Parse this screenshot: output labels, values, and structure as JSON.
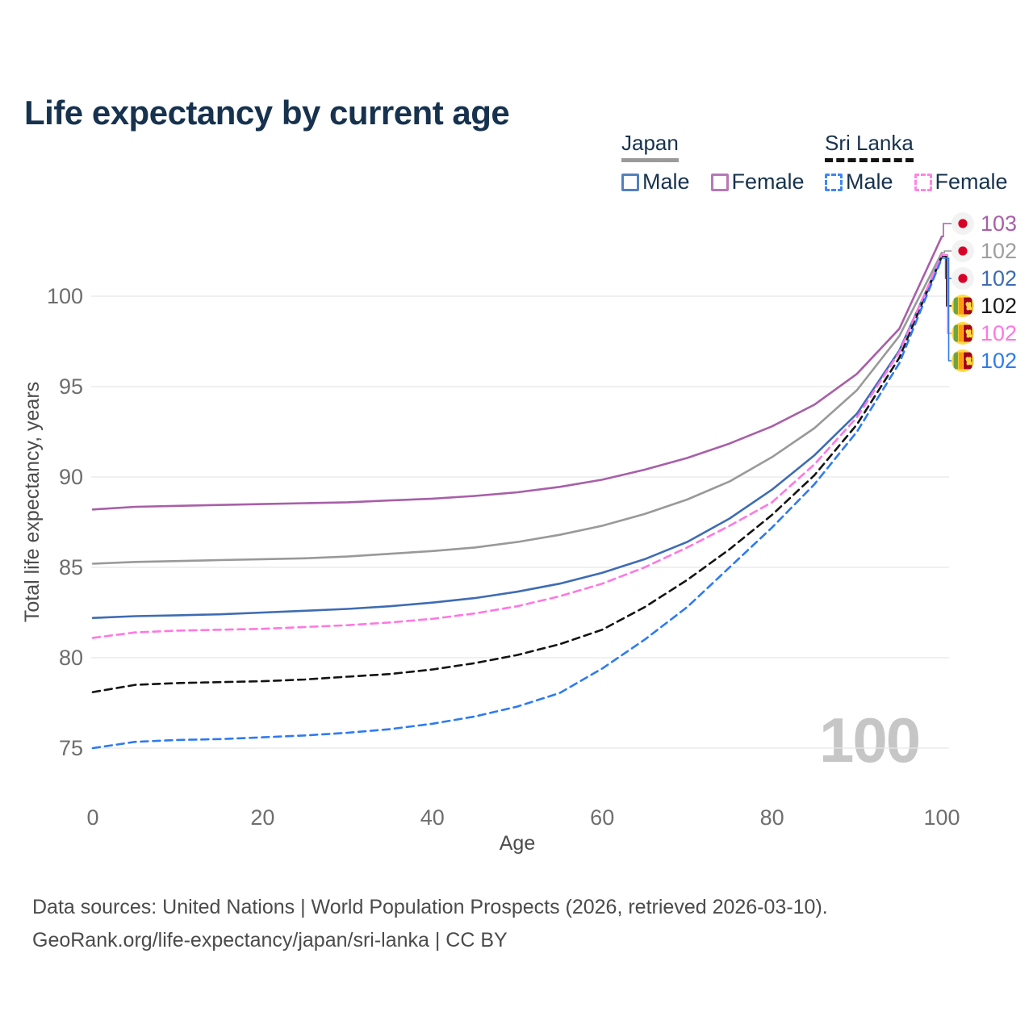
{
  "title": "Life expectancy by current age",
  "legend": {
    "groups": [
      {
        "label": "Japan",
        "line_style": "solid",
        "line_color": "#9a9a9a",
        "items": [
          {
            "label": "Male",
            "color": "#5480be",
            "swatch_style": "solid"
          },
          {
            "label": "Female",
            "color": "#b579b5",
            "swatch_style": "solid"
          }
        ]
      },
      {
        "label": "Sri Lanka",
        "line_style": "dashed",
        "line_color": "#141414",
        "items": [
          {
            "label": "Male",
            "color": "#3d87f5",
            "swatch_style": "dashed"
          },
          {
            "label": "Female",
            "color": "#ff84e4",
            "swatch_style": "dashed"
          }
        ]
      }
    ]
  },
  "watermark": "100",
  "end_labels": [
    {
      "value": "103",
      "color": "#a85fa8",
      "flag": "japan"
    },
    {
      "value": "102",
      "color": "#9e9e9e",
      "flag": "japan"
    },
    {
      "value": "102",
      "color": "#3e6cb3",
      "flag": "japan"
    },
    {
      "value": "102",
      "color": "#1a1a1a",
      "flag": "sri-lanka"
    },
    {
      "value": "102",
      "color": "#ff77e2",
      "flag": "sri-lanka"
    },
    {
      "value": "102",
      "color": "#2e7bf0",
      "flag": "sri-lanka"
    }
  ],
  "footer": {
    "line1": "Data sources: United Nations | World Population Prospects (2026, retrieved 2026-03-10).",
    "line2": "GeoRank.org/life-expectancy/japan/sri-lanka | CC BY"
  },
  "chart_data": {
    "type": "line",
    "title": "Life expectancy by current age",
    "xlabel": "Age",
    "ylabel": "Total life expectancy, years",
    "xlim": [
      0,
      100
    ],
    "ylim": [
      73,
      104
    ],
    "xticks": [
      0,
      20,
      40,
      60,
      80,
      100
    ],
    "yticks": [
      75,
      80,
      85,
      90,
      95,
      100
    ],
    "grid": "horizontal",
    "legend_position": "top-right",
    "x": [
      0,
      5,
      10,
      15,
      20,
      25,
      30,
      35,
      40,
      45,
      50,
      55,
      60,
      65,
      70,
      75,
      80,
      85,
      90,
      95,
      100
    ],
    "series": [
      {
        "id": "japan-female",
        "name": "Japan Female",
        "color": "#a85fa8",
        "dash": "solid",
        "values": [
          88.2,
          88.35,
          88.4,
          88.45,
          88.5,
          88.55,
          88.6,
          88.7,
          88.8,
          88.95,
          89.15,
          89.45,
          89.85,
          90.4,
          91.05,
          91.85,
          92.8,
          94.0,
          95.7,
          98.2,
          103.3
        ]
      },
      {
        "id": "japan-total",
        "name": "Japan Both sexes",
        "color": "#999999",
        "dash": "solid",
        "values": [
          85.2,
          85.3,
          85.35,
          85.4,
          85.45,
          85.5,
          85.6,
          85.75,
          85.9,
          86.1,
          86.4,
          86.8,
          87.3,
          87.95,
          88.75,
          89.75,
          91.1,
          92.7,
          94.8,
          97.8,
          102.4
        ]
      },
      {
        "id": "japan-male",
        "name": "Japan Male",
        "color": "#3e6cb3",
        "dash": "solid",
        "values": [
          82.2,
          82.3,
          82.35,
          82.4,
          82.5,
          82.6,
          82.7,
          82.85,
          83.05,
          83.3,
          83.65,
          84.1,
          84.7,
          85.45,
          86.4,
          87.7,
          89.3,
          91.2,
          93.5,
          97.0,
          102.2
        ]
      },
      {
        "id": "sri-lanka-total",
        "name": "Sri Lanka Both sexes",
        "color": "#141414",
        "dash": "dashed",
        "values": [
          78.1,
          78.5,
          78.6,
          78.65,
          78.7,
          78.8,
          78.95,
          79.1,
          79.35,
          79.7,
          80.15,
          80.75,
          81.55,
          82.8,
          84.3,
          86.0,
          87.9,
          90.1,
          92.9,
          96.6,
          102.2
        ]
      },
      {
        "id": "sri-lanka-female",
        "name": "Sri Lanka Female",
        "color": "#ff77e2",
        "dash": "dashed",
        "values": [
          81.1,
          81.4,
          81.5,
          81.55,
          81.6,
          81.7,
          81.8,
          81.95,
          82.15,
          82.45,
          82.85,
          83.4,
          84.1,
          85.0,
          86.1,
          87.3,
          88.6,
          90.7,
          93.3,
          96.9,
          102.3
        ]
      },
      {
        "id": "sri-lanka-male",
        "name": "Sri Lanka Male",
        "color": "#2e7bf0",
        "dash": "dashed",
        "values": [
          75.0,
          75.35,
          75.45,
          75.5,
          75.6,
          75.7,
          75.85,
          76.05,
          76.35,
          76.75,
          77.3,
          78.05,
          79.4,
          81.0,
          82.8,
          85.0,
          87.2,
          89.6,
          92.5,
          96.3,
          102.1
        ]
      }
    ]
  }
}
